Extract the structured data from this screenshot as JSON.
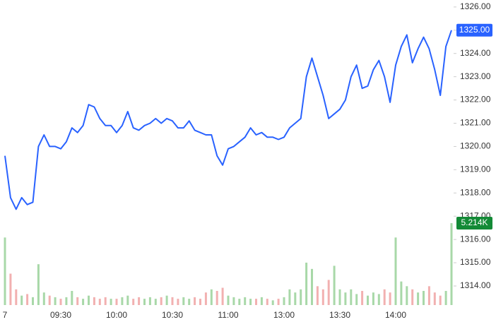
{
  "chart_data": {
    "type": "line",
    "categories": [
      "7",
      null,
      null,
      null,
      null,
      null,
      null,
      null,
      null,
      null,
      "09:30",
      null,
      null,
      null,
      null,
      null,
      null,
      null,
      null,
      null,
      "10:00",
      null,
      null,
      null,
      null,
      null,
      null,
      null,
      null,
      null,
      "10:30",
      null,
      null,
      null,
      null,
      null,
      null,
      null,
      null,
      null,
      "11:00",
      null,
      null,
      null,
      null,
      null,
      null,
      null,
      null,
      null,
      "13:00",
      null,
      null,
      null,
      null,
      null,
      null,
      null,
      null,
      null,
      "13:30",
      null,
      null,
      null,
      null,
      null,
      null,
      null,
      null,
      null,
      "14:00",
      null,
      null,
      null,
      null,
      null,
      null,
      null,
      null,
      null,
      null
    ],
    "values": [
      1319.6,
      1317.8,
      1317.3,
      1317.8,
      1317.5,
      1317.6,
      1320.0,
      1320.5,
      1320.0,
      1320.0,
      1319.9,
      1320.2,
      1320.8,
      1320.6,
      1320.9,
      1321.8,
      1321.7,
      1321.2,
      1320.9,
      1320.9,
      1320.6,
      1320.9,
      1321.5,
      1320.8,
      1320.7,
      1320.9,
      1321.0,
      1321.2,
      1321.0,
      1321.2,
      1321.1,
      1320.8,
      1320.8,
      1321.1,
      1320.7,
      1320.6,
      1320.5,
      1320.5,
      1319.6,
      1319.2,
      1319.9,
      1320.0,
      1320.2,
      1320.4,
      1320.8,
      1320.5,
      1320.6,
      1320.4,
      1320.4,
      1320.3,
      1320.4,
      1320.8,
      1321.0,
      1321.2,
      1323.0,
      1323.8,
      1323.0,
      1322.2,
      1321.2,
      1321.4,
      1321.6,
      1322.0,
      1323.0,
      1323.5,
      1322.5,
      1322.6,
      1323.3,
      1323.7,
      1323.0,
      1321.9,
      1323.5,
      1324.3,
      1324.8,
      1323.6,
      1324.2,
      1324.7,
      1324.2,
      1323.3,
      1322.2,
      1324.3,
      1325.0
    ],
    "color": "#2962ff",
    "ylim": [
      1313.24,
      1326.3
    ],
    "yticks": [
      {
        "value": 1314,
        "label": "1314.00"
      },
      {
        "value": 1315,
        "label": "1315.00"
      },
      {
        "value": 1316,
        "label": "1316.00"
      },
      {
        "value": 1317,
        "label": "1317.00"
      },
      {
        "value": 1318,
        "label": "1318.00"
      },
      {
        "value": 1319,
        "label": "1319.00"
      },
      {
        "value": 1320,
        "label": "1320.00"
      },
      {
        "value": 1321,
        "label": "1321.00"
      },
      {
        "value": 1322,
        "label": "1322.00"
      },
      {
        "value": 1323,
        "label": "1323.00"
      },
      {
        "value": 1324,
        "label": "1324.00"
      },
      {
        "value": 1325,
        "label": "1325.00"
      },
      {
        "value": 1326,
        "label": "1326.00"
      }
    ],
    "last_label": {
      "value": 1325,
      "label": "1325.00"
    },
    "volume": {
      "values": [
        4.3,
        2.0,
        1.0,
        0.6,
        0.7,
        0.5,
        2.6,
        0.8,
        0.6,
        0.5,
        0.4,
        0.5,
        0.9,
        0.5,
        0.4,
        0.6,
        0.5,
        0.4,
        0.5,
        0.4,
        0.4,
        0.5,
        0.6,
        0.4,
        0.5,
        0.4,
        0.5,
        0.4,
        0.5,
        0.6,
        0.5,
        0.4,
        0.5,
        0.4,
        0.5,
        0.4,
        0.8,
        1.0,
        0.9,
        1.1,
        0.6,
        0.5,
        0.4,
        0.5,
        0.4,
        0.4,
        0.5,
        0.4,
        0.3,
        0.4,
        0.5,
        1.0,
        0.8,
        1.0,
        2.7,
        2.3,
        1.2,
        1.0,
        1.6,
        2.5,
        1.0,
        0.8,
        1.0,
        0.7,
        0.9,
        0.6,
        0.8,
        0.7,
        1.0,
        0.8,
        4.3,
        1.5,
        1.2,
        1.0,
        0.8,
        0.9,
        1.2,
        0.8,
        0.6,
        0.9,
        5.214
      ],
      "up_color": "#a8d8a8",
      "down_color": "#f2b0b0",
      "ylim": [
        0,
        5.214
      ],
      "last_label": {
        "value": 5.214,
        "label": "5.214K"
      },
      "label_color": "#138a36"
    }
  }
}
